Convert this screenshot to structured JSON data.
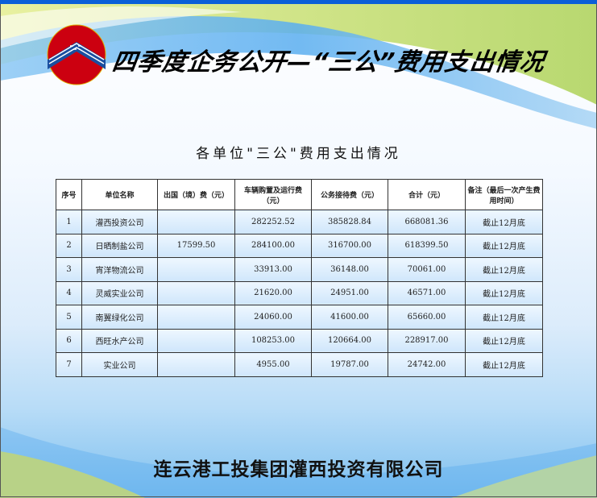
{
  "header": {
    "title": "四季度企务公开—“三公”费用支出情况"
  },
  "subtitle": "各单位\"三公\"费用支出情况",
  "table": {
    "columns": [
      "序号",
      "单位名称",
      "出国（境）费（元）",
      "车辆购置及运行费（元）",
      "公务接待费（元）",
      "合计（元）",
      "备注（最后一次产生费用时间）"
    ],
    "rows": [
      [
        "1",
        "灌西投资公司",
        "",
        "282252.52",
        "385828.84",
        "668081.36",
        "截止12月底"
      ],
      [
        "2",
        "日晒制盐公司",
        "17599.50",
        "284100.00",
        "316700.00",
        "618399.50",
        "截止12月底"
      ],
      [
        "3",
        "宵洋物流公司",
        "",
        "33913.00",
        "36148.00",
        "70061.00",
        "截止12月底"
      ],
      [
        "4",
        "灵威实业公司",
        "",
        "21620.00",
        "24951.00",
        "46571.00",
        "截止12月底"
      ],
      [
        "5",
        "南翼绿化公司",
        "",
        "24060.00",
        "41600.00",
        "65660.00",
        "截止12月底"
      ],
      [
        "6",
        "西旺水产公司",
        "",
        "108253.00",
        "120664.00",
        "228917.00",
        "截止12月底"
      ],
      [
        "7",
        "实业公司",
        "",
        "4955.00",
        "19787.00",
        "24742.00",
        "截止12月底"
      ]
    ]
  },
  "footer": "连云港工投集团灌西投资有限公司",
  "colors": {
    "topbar": "#0a5fd8",
    "logo_red": "#cc0010",
    "logo_blue": "#1a4fa0",
    "wave_blue": "#5aaef0",
    "wave_yellow": "#e8ec80"
  }
}
